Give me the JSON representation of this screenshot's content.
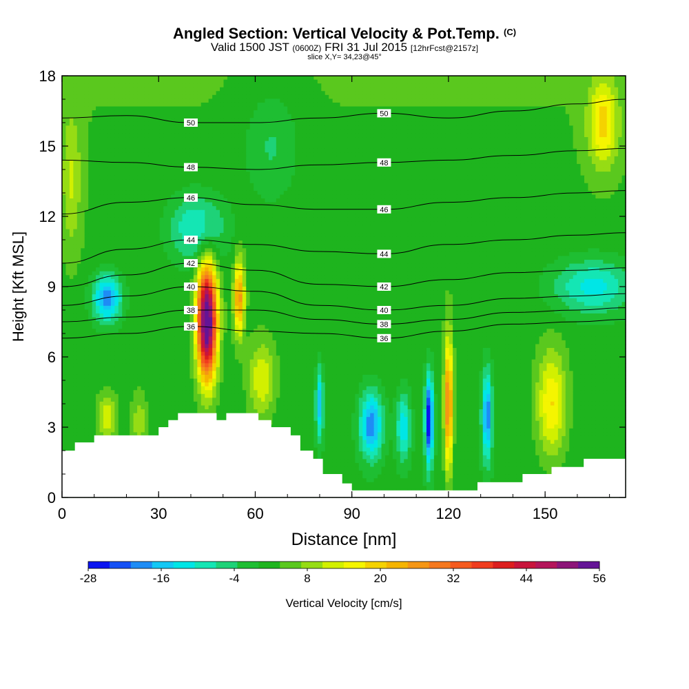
{
  "title": {
    "main": "Angled Section: Vertical Velocity & Pot.Temp.",
    "main_suffix": "(C)",
    "valid_prefix": "Valid 1500 JST",
    "valid_utc": "(0600Z)",
    "valid_date": "FRI 31 Jul 2015",
    "valid_fcst": "[12hrFcst@2157z]",
    "slice": "slice X,Y= 34,23@45°"
  },
  "colorbar": {
    "label": "Vertical Velocity [cm/s]",
    "tick_labels": [
      "-28",
      "-16",
      "-4",
      "8",
      "20",
      "32",
      "44",
      "56"
    ],
    "colors": [
      "#0a14f0",
      "#1450f5",
      "#1e8cf5",
      "#14c8f5",
      "#00e6e6",
      "#14e6b4",
      "#1ed278",
      "#1ebe32",
      "#1eb41e",
      "#5ac81e",
      "#96dc14",
      "#d2f000",
      "#f5f500",
      "#f5d200",
      "#f5b400",
      "#f59614",
      "#f5781e",
      "#f55a1e",
      "#f03c1e",
      "#dc1e1e",
      "#c8143c",
      "#b4145a",
      "#8c1478",
      "#641496"
    ]
  },
  "chart_data": {
    "type": "heatmap",
    "title": "Angled Section: Vertical Velocity & Pot.Temp. (C)",
    "subtitle": "Valid 1500 JST (0600Z) FRI 31 Jul 2015 [12hrFcst@2157z]",
    "xlabel": "Distance [nm]",
    "ylabel": "Height [Kft MSL]",
    "xlim": [
      0,
      175
    ],
    "ylim": [
      0,
      18
    ],
    "x_ticks": [
      0,
      30,
      60,
      90,
      120,
      150
    ],
    "y_ticks": [
      0,
      3,
      6,
      9,
      12,
      15,
      18
    ],
    "colorbar_range": [
      -28,
      56
    ],
    "colorbar_step": 3.5,
    "vertical_velocity_features": [
      {
        "x": 45,
        "y": 7.5,
        "peak": 58,
        "sx": 3.0,
        "sy": 2.4
      },
      {
        "x": 55,
        "y": 8.5,
        "peak": 24,
        "sx": 1.6,
        "sy": 1.6
      },
      {
        "x": 62,
        "y": 5.0,
        "peak": 12,
        "sx": 4.0,
        "sy": 1.6
      },
      {
        "x": 14,
        "y": 3.4,
        "peak": 12,
        "sx": 3.0,
        "sy": 1.0
      },
      {
        "x": 24,
        "y": 3.2,
        "peak": 8,
        "sx": 2.5,
        "sy": 1.2
      },
      {
        "x": 120,
        "y": 4.0,
        "peak": 28,
        "sx": 1.3,
        "sy": 2.8
      },
      {
        "x": 152,
        "y": 4.0,
        "peak": 16,
        "sx": 4.5,
        "sy": 2.2
      },
      {
        "x": 168,
        "y": 16.0,
        "peak": 16,
        "sx": 4.5,
        "sy": 1.8
      },
      {
        "x": 3,
        "y": 13.5,
        "peak": 8,
        "sx": 3.0,
        "sy": 3.0
      },
      {
        "x": 114,
        "y": 3.3,
        "peak": -30,
        "sx": 1.3,
        "sy": 1.9
      },
      {
        "x": 132,
        "y": 3.5,
        "peak": -22,
        "sx": 1.6,
        "sy": 1.9
      },
      {
        "x": 96,
        "y": 3.1,
        "peak": -22,
        "sx": 3.5,
        "sy": 1.4
      },
      {
        "x": 80,
        "y": 4.0,
        "peak": -18,
        "sx": 1.2,
        "sy": 1.5
      },
      {
        "x": 106,
        "y": 3.0,
        "peak": -15,
        "sx": 2.2,
        "sy": 1.4
      },
      {
        "x": 14,
        "y": 8.5,
        "peak": -22,
        "sx": 4.5,
        "sy": 1.0
      },
      {
        "x": 42,
        "y": 11.5,
        "peak": -14,
        "sx": 9.0,
        "sy": 1.5
      },
      {
        "x": 165,
        "y": 9.0,
        "peak": -14,
        "sx": 13.0,
        "sy": 1.2
      },
      {
        "x": 65,
        "y": 15.0,
        "peak": -7,
        "sx": 9.0,
        "sy": 2.5
      }
    ],
    "terrain": [
      [
        0,
        2.0
      ],
      [
        4,
        2.0
      ],
      [
        4,
        2.35
      ],
      [
        10,
        2.35
      ],
      [
        10,
        2.65
      ],
      [
        30,
        2.65
      ],
      [
        30,
        3.0
      ],
      [
        33,
        3.0
      ],
      [
        33,
        3.3
      ],
      [
        36,
        3.3
      ],
      [
        36,
        3.6
      ],
      [
        48,
        3.6
      ],
      [
        48,
        3.3
      ],
      [
        51,
        3.3
      ],
      [
        51,
        3.6
      ],
      [
        61,
        3.6
      ],
      [
        61,
        3.3
      ],
      [
        65,
        3.3
      ],
      [
        65,
        3.0
      ],
      [
        71,
        3.0
      ],
      [
        71,
        2.65
      ],
      [
        74,
        2.65
      ],
      [
        74,
        2.0
      ],
      [
        78,
        2.0
      ],
      [
        78,
        1.65
      ],
      [
        81,
        1.65
      ],
      [
        81,
        1.0
      ],
      [
        87,
        1.0
      ],
      [
        87,
        0.6
      ],
      [
        90,
        0.6
      ],
      [
        90,
        0.3
      ],
      [
        129,
        0.3
      ],
      [
        129,
        0.65
      ],
      [
        143,
        0.65
      ],
      [
        143,
        1.0
      ],
      [
        152,
        1.0
      ],
      [
        152,
        1.3
      ],
      [
        162,
        1.3
      ],
      [
        162,
        1.65
      ],
      [
        175,
        1.65
      ]
    ],
    "theta_contours": [
      {
        "value": 36,
        "label": "36",
        "points": [
          [
            0,
            6.8
          ],
          [
            20,
            7.0
          ],
          [
            40,
            7.3
          ],
          [
            60,
            7.1
          ],
          [
            80,
            7.0
          ],
          [
            100,
            6.8
          ],
          [
            120,
            7.1
          ],
          [
            140,
            7.4
          ],
          [
            160,
            7.5
          ],
          [
            175,
            7.6
          ]
        ]
      },
      {
        "value": 38,
        "label": "38",
        "points": [
          [
            0,
            7.5
          ],
          [
            20,
            7.7
          ],
          [
            40,
            8.0
          ],
          [
            60,
            8.0
          ],
          [
            80,
            7.6
          ],
          [
            100,
            7.4
          ],
          [
            120,
            7.6
          ],
          [
            140,
            7.9
          ],
          [
            160,
            8.0
          ],
          [
            175,
            8.1
          ]
        ]
      },
      {
        "value": 40,
        "label": "40",
        "points": [
          [
            0,
            8.2
          ],
          [
            20,
            8.6
          ],
          [
            40,
            9.0
          ],
          [
            60,
            8.8
          ],
          [
            80,
            8.2
          ],
          [
            100,
            8.0
          ],
          [
            120,
            8.2
          ],
          [
            140,
            8.5
          ],
          [
            160,
            8.6
          ],
          [
            175,
            8.7
          ]
        ]
      },
      {
        "value": 42,
        "label": "42",
        "points": [
          [
            0,
            9.0
          ],
          [
            20,
            9.5
          ],
          [
            40,
            10.0
          ],
          [
            60,
            9.7
          ],
          [
            80,
            9.1
          ],
          [
            100,
            9.0
          ],
          [
            120,
            9.3
          ],
          [
            140,
            9.6
          ],
          [
            160,
            9.7
          ],
          [
            175,
            9.8
          ]
        ]
      },
      {
        "value": 44,
        "label": "44",
        "points": [
          [
            0,
            10.0
          ],
          [
            20,
            10.6
          ],
          [
            40,
            11.0
          ],
          [
            60,
            10.8
          ],
          [
            80,
            10.5
          ],
          [
            100,
            10.4
          ],
          [
            120,
            10.8
          ],
          [
            140,
            11.0
          ],
          [
            160,
            11.2
          ],
          [
            175,
            11.3
          ]
        ]
      },
      {
        "value": 46,
        "label": "46",
        "points": [
          [
            0,
            12.1
          ],
          [
            20,
            12.6
          ],
          [
            40,
            12.8
          ],
          [
            60,
            12.5
          ],
          [
            80,
            12.3
          ],
          [
            100,
            12.3
          ],
          [
            120,
            12.6
          ],
          [
            140,
            12.8
          ],
          [
            160,
            13.0
          ],
          [
            175,
            13.1
          ]
        ]
      },
      {
        "value": 48,
        "label": "48",
        "points": [
          [
            0,
            14.4
          ],
          [
            20,
            14.3
          ],
          [
            40,
            14.1
          ],
          [
            60,
            14.0
          ],
          [
            80,
            14.2
          ],
          [
            100,
            14.3
          ],
          [
            120,
            14.4
          ],
          [
            140,
            14.6
          ],
          [
            160,
            14.8
          ],
          [
            175,
            14.9
          ]
        ]
      },
      {
        "value": 50,
        "label": "50",
        "points": [
          [
            0,
            16.2
          ],
          [
            20,
            16.3
          ],
          [
            40,
            16.0
          ],
          [
            60,
            16.0
          ],
          [
            80,
            16.2
          ],
          [
            100,
            16.4
          ],
          [
            120,
            16.2
          ],
          [
            140,
            16.5
          ],
          [
            160,
            16.8
          ],
          [
            175,
            17.0
          ]
        ]
      }
    ]
  }
}
